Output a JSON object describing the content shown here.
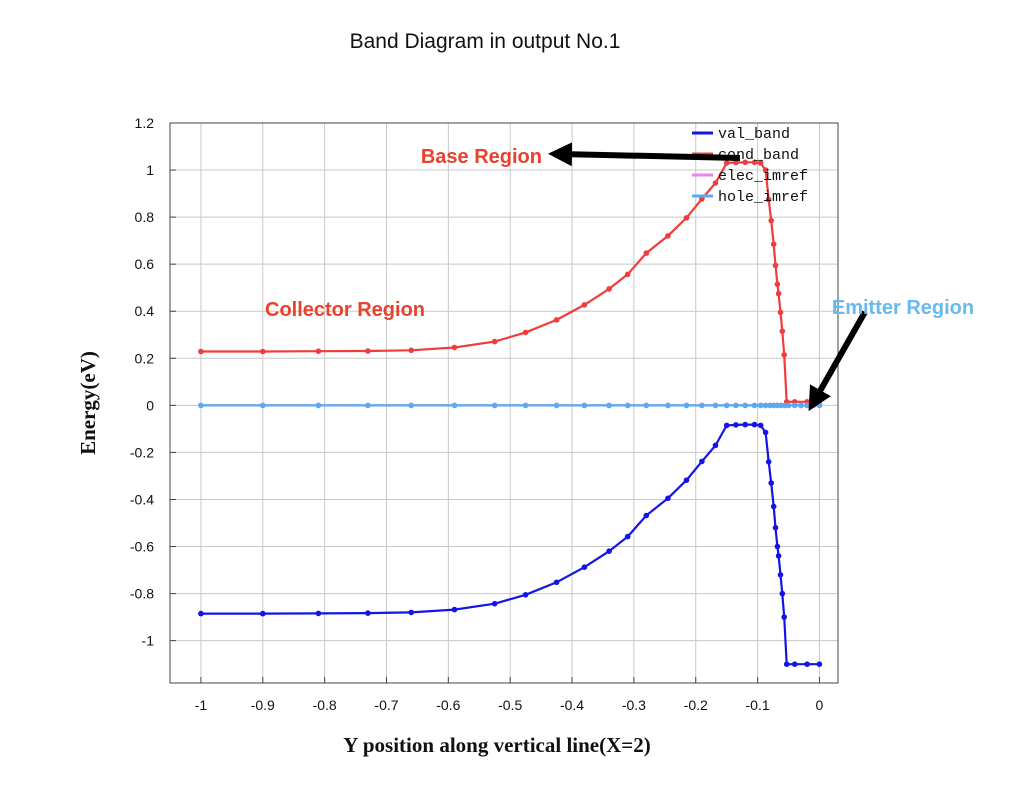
{
  "chart_data": {
    "type": "line",
    "title": "Band Diagram in output No.1",
    "xlabel": "Y position along vertical line(X=2)",
    "ylabel": "Energy(eV)",
    "xlim": [
      -1.05,
      0.03
    ],
    "ylim": [
      -1.18,
      1.2
    ],
    "grid": true,
    "legend_position": "top-right",
    "x_ticks": [
      "-1",
      "-0.9",
      "-0.8",
      "-0.7",
      "-0.6",
      "-0.5",
      "-0.4",
      "-0.3",
      "-0.2",
      "-0.1",
      "0"
    ],
    "y_ticks": [
      "1.2",
      "1",
      "0.8",
      "0.6",
      "0.4",
      "0.2",
      "0",
      "-0.2",
      "-0.4",
      "-0.6",
      "-0.8",
      "-1"
    ],
    "series": [
      {
        "name": "val_band",
        "color": "#1414e6",
        "points": [
          [
            -1.0,
            -0.885
          ],
          [
            -0.9,
            -0.885
          ],
          [
            -0.81,
            -0.884
          ],
          [
            -0.73,
            -0.883
          ],
          [
            -0.66,
            -0.88
          ],
          [
            -0.59,
            -0.868
          ],
          [
            -0.525,
            -0.843
          ],
          [
            -0.475,
            -0.805
          ],
          [
            -0.425,
            -0.752
          ],
          [
            -0.38,
            -0.688
          ],
          [
            -0.34,
            -0.62
          ],
          [
            -0.31,
            -0.558
          ],
          [
            -0.28,
            -0.468
          ],
          [
            -0.245,
            -0.395
          ],
          [
            -0.215,
            -0.318
          ],
          [
            -0.19,
            -0.238
          ],
          [
            -0.168,
            -0.17
          ],
          [
            -0.15,
            -0.085
          ],
          [
            -0.135,
            -0.083
          ],
          [
            -0.12,
            -0.082
          ],
          [
            -0.105,
            -0.082
          ],
          [
            -0.095,
            -0.085
          ],
          [
            -0.087,
            -0.115
          ],
          [
            -0.082,
            -0.24
          ],
          [
            -0.078,
            -0.33
          ],
          [
            -0.074,
            -0.43
          ],
          [
            -0.071,
            -0.52
          ],
          [
            -0.068,
            -0.6
          ],
          [
            -0.066,
            -0.64
          ],
          [
            -0.063,
            -0.72
          ],
          [
            -0.06,
            -0.8
          ],
          [
            -0.057,
            -0.9
          ],
          [
            -0.053,
            -1.1
          ],
          [
            -0.04,
            -1.1
          ],
          [
            -0.02,
            -1.1
          ],
          [
            0.0,
            -1.1
          ]
        ]
      },
      {
        "name": "cond_band",
        "color": "#f03c3c",
        "points": [
          [
            -1.0,
            0.229
          ],
          [
            -0.9,
            0.229
          ],
          [
            -0.81,
            0.23
          ],
          [
            -0.73,
            0.231
          ],
          [
            -0.66,
            0.234
          ],
          [
            -0.59,
            0.246
          ],
          [
            -0.525,
            0.271
          ],
          [
            -0.475,
            0.31
          ],
          [
            -0.425,
            0.363
          ],
          [
            -0.38,
            0.427
          ],
          [
            -0.34,
            0.495
          ],
          [
            -0.31,
            0.557
          ],
          [
            -0.28,
            0.647
          ],
          [
            -0.245,
            0.72
          ],
          [
            -0.215,
            0.797
          ],
          [
            -0.19,
            0.877
          ],
          [
            -0.168,
            0.945
          ],
          [
            -0.15,
            1.03
          ],
          [
            -0.135,
            1.032
          ],
          [
            -0.12,
            1.033
          ],
          [
            -0.105,
            1.033
          ],
          [
            -0.095,
            1.03
          ],
          [
            -0.087,
            1.0
          ],
          [
            -0.082,
            0.875
          ],
          [
            -0.078,
            0.785
          ],
          [
            -0.074,
            0.685
          ],
          [
            -0.071,
            0.595
          ],
          [
            -0.068,
            0.515
          ],
          [
            -0.066,
            0.475
          ],
          [
            -0.063,
            0.395
          ],
          [
            -0.06,
            0.315
          ],
          [
            -0.057,
            0.215
          ],
          [
            -0.053,
            0.015
          ],
          [
            -0.04,
            0.015
          ],
          [
            -0.02,
            0.015
          ],
          [
            0.0,
            0.015
          ]
        ]
      },
      {
        "name": "elec_imref",
        "color": "#ee82ee",
        "points": [
          [
            -1.0,
            0.0
          ],
          [
            -0.9,
            0.0
          ],
          [
            -0.81,
            0.0
          ],
          [
            -0.73,
            0.0
          ],
          [
            -0.66,
            0.0
          ],
          [
            -0.59,
            0.0
          ],
          [
            -0.525,
            0.0
          ],
          [
            -0.475,
            0.0
          ],
          [
            -0.425,
            0.0
          ],
          [
            -0.38,
            0.0
          ],
          [
            -0.34,
            0.0
          ],
          [
            -0.31,
            0.0
          ],
          [
            -0.28,
            0.0
          ],
          [
            -0.245,
            0.0
          ],
          [
            -0.215,
            0.0
          ],
          [
            -0.19,
            0.0
          ],
          [
            -0.168,
            0.0
          ],
          [
            -0.15,
            0.0
          ],
          [
            -0.135,
            0.0
          ],
          [
            -0.12,
            0.0
          ],
          [
            -0.105,
            0.0
          ],
          [
            -0.095,
            0.0
          ],
          [
            -0.087,
            0.0
          ],
          [
            -0.08,
            0.0
          ],
          [
            -0.074,
            0.0
          ],
          [
            -0.068,
            0.0
          ],
          [
            -0.062,
            0.0
          ],
          [
            -0.056,
            0.0
          ],
          [
            -0.05,
            0.0
          ],
          [
            -0.04,
            0.0
          ],
          [
            -0.03,
            0.0
          ],
          [
            -0.02,
            0.0
          ],
          [
            -0.01,
            0.0
          ],
          [
            0.0,
            0.0
          ]
        ]
      },
      {
        "name": "hole_imref",
        "color": "#5aaaf0",
        "points": [
          [
            -1.0,
            0.0
          ],
          [
            -0.9,
            0.0
          ],
          [
            -0.81,
            0.0
          ],
          [
            -0.73,
            0.0
          ],
          [
            -0.66,
            0.0
          ],
          [
            -0.59,
            0.0
          ],
          [
            -0.525,
            0.0
          ],
          [
            -0.475,
            0.0
          ],
          [
            -0.425,
            0.0
          ],
          [
            -0.38,
            0.0
          ],
          [
            -0.34,
            0.0
          ],
          [
            -0.31,
            0.0
          ],
          [
            -0.28,
            0.0
          ],
          [
            -0.245,
            0.0
          ],
          [
            -0.215,
            0.0
          ],
          [
            -0.19,
            0.0
          ],
          [
            -0.168,
            0.0
          ],
          [
            -0.15,
            0.0
          ],
          [
            -0.135,
            0.0
          ],
          [
            -0.12,
            0.0
          ],
          [
            -0.105,
            0.0
          ],
          [
            -0.095,
            0.0
          ],
          [
            -0.087,
            0.0
          ],
          [
            -0.08,
            0.0
          ],
          [
            -0.074,
            0.0
          ],
          [
            -0.068,
            0.0
          ],
          [
            -0.062,
            0.0
          ],
          [
            -0.056,
            0.0
          ],
          [
            -0.05,
            0.0
          ],
          [
            -0.04,
            0.0
          ],
          [
            -0.03,
            0.0
          ],
          [
            -0.02,
            0.0
          ],
          [
            -0.01,
            0.0
          ],
          [
            0.0,
            0.0
          ]
        ]
      }
    ],
    "annotations": [
      {
        "text": "Base Region",
        "color": "#e8412c",
        "x": -0.48,
        "y": 1.06,
        "arrow_to": [
          -0.1,
          1.04
        ]
      },
      {
        "text": "Collector Region",
        "color": "#e8412c",
        "x": -0.9,
        "y": 0.41
      },
      {
        "text": "Emitter Region",
        "color": "#6ab8f0",
        "x": -0.015,
        "y": 0.42,
        "arrow_to": [
          -0.008,
          0.02
        ]
      }
    ]
  }
}
